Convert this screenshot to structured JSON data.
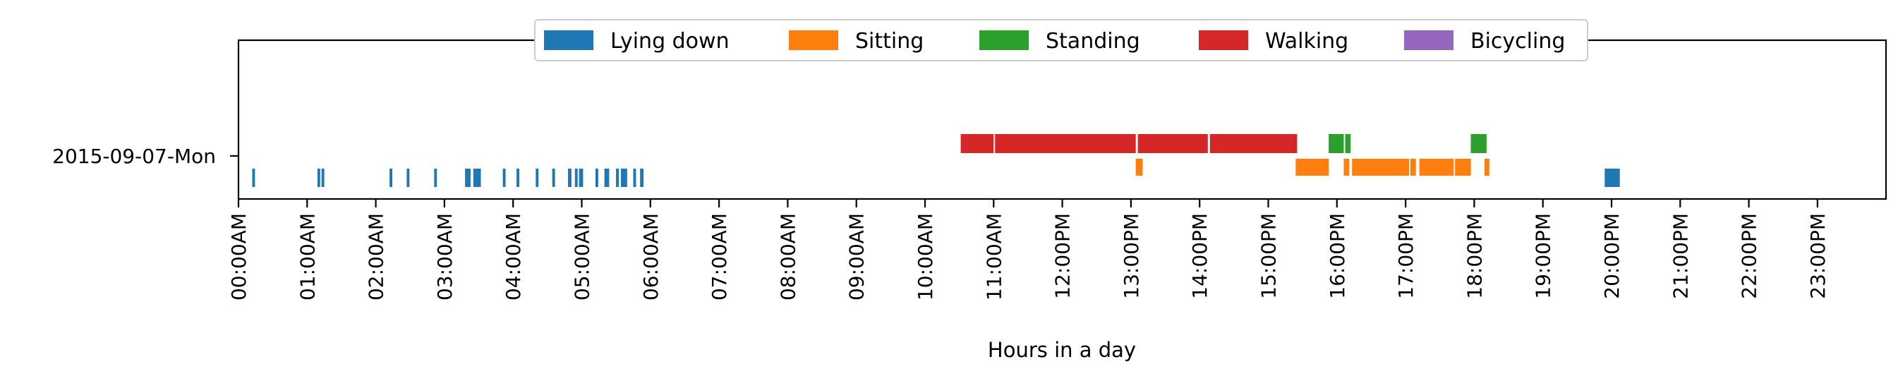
{
  "chart_data": {
    "type": "timeline",
    "title": "",
    "xlabel": "Hours in a day",
    "ylabel": "",
    "xlim": [
      0,
      24
    ],
    "row_label": "2015-09-07-Mon",
    "x_tick_labels": [
      "00:00AM",
      "01:00AM",
      "02:00AM",
      "03:00AM",
      "04:00AM",
      "05:00AM",
      "06:00AM",
      "07:00AM",
      "08:00AM",
      "09:00AM",
      "10:00AM",
      "11:00AM",
      "12:00PM",
      "13:00PM",
      "14:00PM",
      "15:00PM",
      "16:00PM",
      "17:00PM",
      "18:00PM",
      "19:00PM",
      "20:00PM",
      "21:00PM",
      "22:00PM",
      "23:00PM"
    ],
    "legend_position": "top-center",
    "series": [
      {
        "name": "Lying down",
        "color": "#1f77b4",
        "level": "low",
        "intervals": [
          [
            0.2,
            0.24
          ],
          [
            1.15,
            1.19
          ],
          [
            1.21,
            1.25
          ],
          [
            2.2,
            2.24
          ],
          [
            2.45,
            2.49
          ],
          [
            2.85,
            2.89
          ],
          [
            3.3,
            3.38
          ],
          [
            3.42,
            3.53
          ],
          [
            3.85,
            3.89
          ],
          [
            4.05,
            4.09
          ],
          [
            4.33,
            4.37
          ],
          [
            4.57,
            4.61
          ],
          [
            4.8,
            4.85
          ],
          [
            4.9,
            4.94
          ],
          [
            4.96,
            5.02
          ],
          [
            5.2,
            5.24
          ],
          [
            5.33,
            5.4
          ],
          [
            5.5,
            5.54
          ],
          [
            5.57,
            5.66
          ],
          [
            5.75,
            5.79
          ],
          [
            5.85,
            5.9
          ],
          [
            19.9,
            20.12
          ]
        ]
      },
      {
        "name": "Sitting",
        "color": "#ff7f0e",
        "level": "mid",
        "intervals": [
          [
            13.07,
            13.17
          ],
          [
            15.4,
            15.88
          ],
          [
            16.1,
            16.18
          ],
          [
            16.22,
            17.05
          ],
          [
            17.07,
            17.15
          ],
          [
            17.2,
            17.7
          ],
          [
            17.72,
            17.95
          ],
          [
            18.15,
            18.22
          ]
        ]
      },
      {
        "name": "Standing",
        "color": "#2ca02c",
        "level": "high",
        "intervals": [
          [
            15.88,
            16.1
          ],
          [
            16.12,
            16.2
          ],
          [
            17.95,
            18.18
          ]
        ]
      },
      {
        "name": "Walking",
        "color": "#d62728",
        "level": "high",
        "intervals": [
          [
            10.52,
            11.0
          ],
          [
            11.02,
            13.07
          ],
          [
            13.1,
            14.12
          ],
          [
            14.15,
            15.42
          ]
        ]
      },
      {
        "name": "Bicycling",
        "color": "#9467bd",
        "level": "high",
        "intervals": []
      }
    ]
  }
}
